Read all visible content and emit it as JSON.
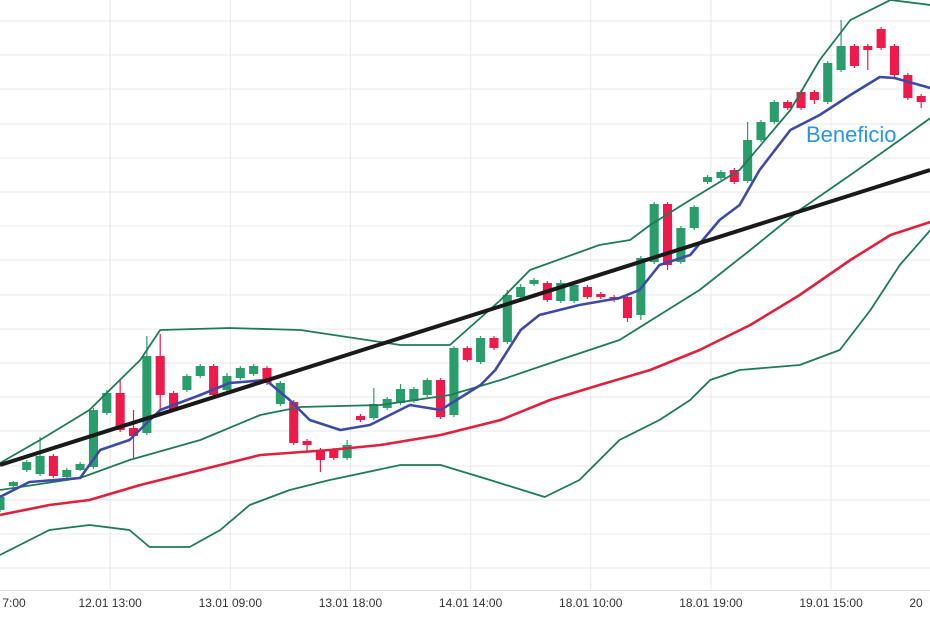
{
  "chart_data": {
    "type": "candlestick",
    "xlim": [
      0,
      69.66
    ],
    "ylim": [
      0,
      590
    ],
    "grid": true,
    "xticks": [
      {
        "value": -0.75,
        "label": "7:00"
      },
      {
        "value": 8.25,
        "label": "12.01 13:00"
      },
      {
        "value": 17.25,
        "label": "13.01 09:00"
      },
      {
        "value": 26.25,
        "label": "13.01 18:00"
      },
      {
        "value": 35.25,
        "label": "14.01 14:00"
      },
      {
        "value": 44.25,
        "label": "18.01 10:00"
      },
      {
        "value": 53.25,
        "label": "18.01 19:00"
      },
      {
        "value": 62.25,
        "label": "19.01 15:00"
      },
      {
        "value": 71.25,
        "label": "20"
      }
    ],
    "yticks": [
      22,
      56,
      90,
      124,
      159,
      193,
      227,
      261,
      295,
      330,
      364,
      398,
      432,
      466,
      501,
      535,
      569
    ],
    "up_color": "#2a9d6c",
    "down_color": "#ee1a4c",
    "x": [
      0,
      1,
      2,
      3,
      4,
      5,
      6,
      7,
      8,
      9,
      10,
      11,
      12,
      13,
      14,
      15,
      16,
      17,
      18,
      19,
      20,
      21,
      22,
      23,
      24,
      25,
      26,
      27,
      28,
      29,
      30,
      31,
      32,
      33,
      34,
      35,
      36,
      37,
      38,
      39,
      40,
      41,
      42,
      43,
      44,
      45,
      46,
      47,
      48,
      49,
      50,
      51,
      52,
      53,
      54,
      55,
      56,
      57,
      58,
      59,
      60,
      61,
      62,
      63,
      64,
      65,
      66,
      67,
      68,
      69
    ],
    "open": [
      80,
      104,
      120,
      116,
      134,
      113,
      120,
      123,
      177,
      197,
      162,
      157,
      234,
      197,
      200,
      214,
      224,
      200,
      212,
      216,
      222,
      186,
      188,
      149,
      140,
      140,
      132,
      174,
      172,
      182,
      187,
      189,
      195,
      210,
      175,
      242,
      228,
      252,
      248,
      293,
      306,
      307,
      289,
      289,
      303,
      296,
      293,
      293,
      275,
      328,
      386,
      328,
      362,
      408,
      412,
      420,
      409,
      450,
      468,
      488,
      498,
      498,
      488,
      520,
      544,
      544,
      561,
      544,
      515,
      494
    ],
    "high": [
      95,
      109,
      130,
      153,
      136,
      122,
      128,
      182,
      200,
      210,
      180,
      254,
      256,
      199,
      216,
      226,
      226,
      217,
      224,
      226,
      224,
      209,
      190,
      151,
      142,
      142,
      150,
      176,
      202,
      193,
      206,
      203,
      212,
      212,
      244,
      244,
      254,
      254,
      300,
      306,
      312,
      309,
      310,
      307,
      305,
      298,
      295,
      295,
      334,
      388,
      388,
      364,
      385,
      415,
      420,
      422,
      468,
      470,
      490,
      490,
      500,
      500,
      529,
      570,
      546,
      546,
      563,
      546,
      517,
      496
    ],
    "low": [
      78,
      103,
      118,
      114,
      112,
      111,
      119,
      121,
      175,
      158,
      132,
      155,
      180,
      178,
      198,
      212,
      193,
      198,
      210,
      214,
      205,
      184,
      145,
      138,
      118,
      130,
      130,
      168,
      170,
      180,
      185,
      187,
      193,
      171,
      173,
      228,
      226,
      240,
      246,
      291,
      304,
      288,
      287,
      287,
      291,
      291,
      288,
      268,
      270,
      326,
      320,
      326,
      360,
      406,
      410,
      406,
      407,
      448,
      466,
      480,
      480,
      486,
      486,
      518,
      522,
      520,
      540,
      513,
      490,
      482
    ],
    "close": [
      93,
      108,
      128,
      134,
      114,
      120,
      126,
      180,
      197,
      160,
      154,
      234,
      195,
      180,
      214,
      224,
      195,
      214,
      222,
      224,
      207,
      207,
      147,
      145,
      130,
      132,
      145,
      170,
      186,
      191,
      201,
      201,
      210,
      173,
      242,
      230,
      252,
      242,
      295,
      303,
      310,
      290,
      307,
      305,
      293,
      293,
      290,
      272,
      332,
      386,
      325,
      362,
      383,
      413,
      418,
      408,
      450,
      468,
      488,
      482,
      482,
      490,
      527,
      544,
      524,
      540,
      542,
      515,
      492,
      488
    ],
    "lines": [
      {
        "color": "#1f7a57",
        "x": [
          0,
          3,
          6.7,
          10.5,
          12,
          17.2,
          22.5,
          30,
          33.7,
          37.5,
          39.7,
          44.9,
          47.2,
          48.7,
          51.7,
          55.4,
          59.2,
          61.4,
          63.7,
          66.7,
          69.7
        ],
        "values": [
          127,
          150,
          180,
          230,
          260,
          262,
          260,
          245,
          245,
          290,
          320,
          345,
          350,
          365,
          390,
          420,
          480,
          530,
          570,
          590,
          585
        ]
      },
      {
        "color": "#1f7a57",
        "x": [
          0,
          6,
          9.7,
          15,
          19.5,
          22.5,
          28.5,
          33.7,
          37.5,
          41.9,
          46.4,
          49.4,
          52.4,
          56.2,
          59.9,
          63.7,
          67.4,
          69.7
        ],
        "values": [
          100,
          112,
          130,
          150,
          175,
          183,
          185,
          195,
          210,
          230,
          250,
          275,
          300,
          340,
          380,
          415,
          450,
          472
        ]
      },
      {
        "color": "#1f7a57",
        "x": [
          0,
          3.7,
          6.7,
          9.7,
          11.2,
          14.2,
          16.5,
          18.7,
          21.7,
          24.7,
          30,
          33,
          36.7,
          40.8,
          43.4,
          46.4,
          49.4,
          51.7,
          53.2,
          55.4,
          59.9,
          62.9,
          65.2,
          67.4,
          69.7
        ],
        "values": [
          35,
          60,
          65,
          60,
          43,
          43,
          60,
          85,
          100,
          110,
          125,
          125,
          110,
          93,
          110,
          150,
          170,
          190,
          210,
          220,
          225,
          240,
          280,
          325,
          360
        ]
      },
      {
        "color": "#3d4aa6",
        "x": [
          0,
          2.2,
          6,
          7.5,
          9.7,
          12,
          15,
          17.2,
          19.9,
          21.7,
          23.2,
          25.5,
          27.7,
          30.7,
          33,
          36,
          37.1,
          39,
          40.4,
          43.4,
          46.4,
          47.9,
          49.4,
          51.7,
          53.9,
          55.4,
          56.9,
          59.2,
          61.4,
          63.7,
          65.9,
          67,
          69.7
        ],
        "values": [
          93,
          108,
          112,
          140,
          150,
          180,
          195,
          207,
          210,
          190,
          170,
          160,
          165,
          185,
          180,
          205,
          220,
          260,
          275,
          285,
          292,
          300,
          325,
          335,
          370,
          385,
          420,
          460,
          475,
          495,
          513,
          512,
          502
        ]
      },
      {
        "color": "#e0203c",
        "x": [
          0,
          3.7,
          6.7,
          10.5,
          15,
          19.5,
          24.7,
          28.5,
          33,
          37.5,
          41.2,
          44.9,
          48.7,
          52.4,
          56.2,
          59.9,
          63.7,
          66.7,
          69.7
        ],
        "values": [
          75,
          85,
          90,
          105,
          120,
          135,
          140,
          145,
          155,
          170,
          190,
          205,
          220,
          240,
          265,
          295,
          330,
          355,
          368
        ]
      },
      {
        "color": "#1a1a1a",
        "x": [
          0,
          69.66
        ],
        "values": [
          125,
          420
        ]
      }
    ],
    "annotations": [
      {
        "text": "Beneficio",
        "color": "#2a95e0"
      }
    ]
  }
}
